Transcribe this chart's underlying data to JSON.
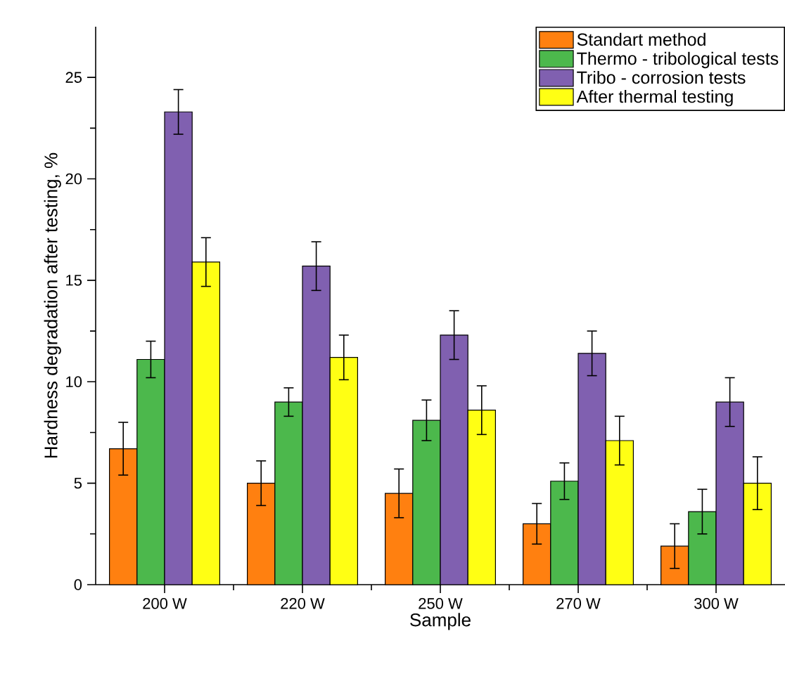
{
  "chart_data": {
    "type": "bar",
    "xlabel": "Sample",
    "ylabel": "Hardness degradation after testing, %",
    "categories": [
      "200 W",
      "220 W",
      "250 W",
      "270 W",
      "300 W"
    ],
    "series": [
      {
        "name": "Standart method",
        "color": "#ff8010",
        "values": [
          6.7,
          5.0,
          4.5,
          3.0,
          1.9
        ],
        "errors": [
          1.3,
          1.1,
          1.2,
          1.0,
          1.1
        ]
      },
      {
        "name": "Thermo - tribological tests",
        "color": "#4cb84c",
        "values": [
          11.1,
          9.0,
          8.1,
          5.1,
          3.6
        ],
        "errors": [
          0.9,
          0.7,
          1.0,
          0.9,
          1.1
        ]
      },
      {
        "name": "Tribo - corrosion tests",
        "color": "#8060b0",
        "values": [
          23.3,
          15.7,
          12.3,
          11.4,
          9.0
        ],
        "errors": [
          1.1,
          1.2,
          1.2,
          1.1,
          1.2
        ]
      },
      {
        "name": "After thermal testing",
        "color": "#ffff14",
        "values": [
          15.9,
          11.2,
          8.6,
          7.1,
          5.0
        ],
        "errors": [
          1.2,
          1.1,
          1.2,
          1.2,
          1.3
        ]
      }
    ],
    "ylim": [
      0,
      27.5
    ],
    "yticks": [
      0,
      5,
      10,
      15,
      20,
      25
    ],
    "legend": "top right",
    "grid": false
  }
}
